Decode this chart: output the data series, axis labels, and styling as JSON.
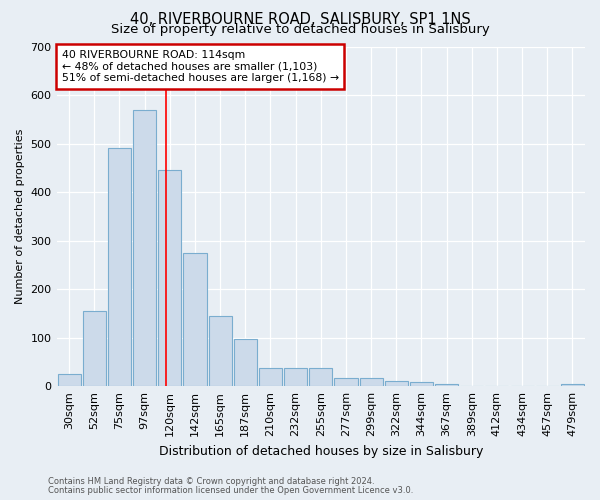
{
  "title": "40, RIVERBOURNE ROAD, SALISBURY, SP1 1NS",
  "subtitle": "Size of property relative to detached houses in Salisbury",
  "xlabel": "Distribution of detached houses by size in Salisbury",
  "ylabel": "Number of detached properties",
  "bar_values": [
    25,
    155,
    490,
    570,
    445,
    275,
    145,
    97,
    37,
    37,
    37,
    17,
    17,
    10,
    8,
    5,
    0,
    0,
    0,
    0,
    5
  ],
  "bar_labels": [
    "30sqm",
    "52sqm",
    "75sqm",
    "97sqm",
    "120sqm",
    "142sqm",
    "165sqm",
    "187sqm",
    "210sqm",
    "232sqm",
    "255sqm",
    "277sqm",
    "299sqm",
    "322sqm",
    "344sqm",
    "367sqm",
    "389sqm",
    "412sqm",
    "434sqm",
    "457sqm",
    "479sqm"
  ],
  "bar_color": "#ccdaea",
  "bar_edge_color": "#7aadcf",
  "ylim": [
    0,
    700
  ],
  "yticks": [
    0,
    100,
    200,
    300,
    400,
    500,
    600,
    700
  ],
  "red_line_x": 3.83,
  "annotation_text": "40 RIVERBOURNE ROAD: 114sqm\n← 48% of detached houses are smaller (1,103)\n51% of semi-detached houses are larger (1,168) →",
  "annotation_box_color": "#ffffff",
  "annotation_box_edge": "#cc0000",
  "footer_line1": "Contains HM Land Registry data © Crown copyright and database right 2024.",
  "footer_line2": "Contains public sector information licensed under the Open Government Licence v3.0.",
  "background_color": "#e8eef4",
  "plot_bg_color": "#e8eef4",
  "grid_color": "#ffffff",
  "title_fontsize": 10.5,
  "subtitle_fontsize": 9.5,
  "ylabel_fontsize": 8,
  "xlabel_fontsize": 9
}
